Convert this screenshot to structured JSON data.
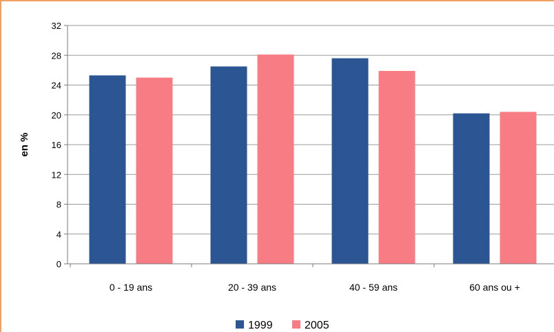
{
  "chart_data": {
    "type": "bar",
    "categories": [
      "0 - 19 ans",
      "20 - 39 ans",
      "40 - 59 ans",
      "60 ans ou +"
    ],
    "series": [
      {
        "name": "1999",
        "values": [
          25.3,
          26.5,
          27.6,
          20.2
        ],
        "color": "#2b5693"
      },
      {
        "name": "2005",
        "values": [
          25.0,
          28.1,
          25.9,
          20.4
        ],
        "color": "#f87c83"
      }
    ],
    "ylabel": "en %",
    "xlabel": "",
    "title": "",
    "ylim": [
      0,
      32
    ],
    "yticks": [
      "0",
      "4",
      "8",
      "12",
      "16",
      "20",
      "24",
      "28",
      "32"
    ],
    "grid": true,
    "legend_position": "bottom"
  }
}
